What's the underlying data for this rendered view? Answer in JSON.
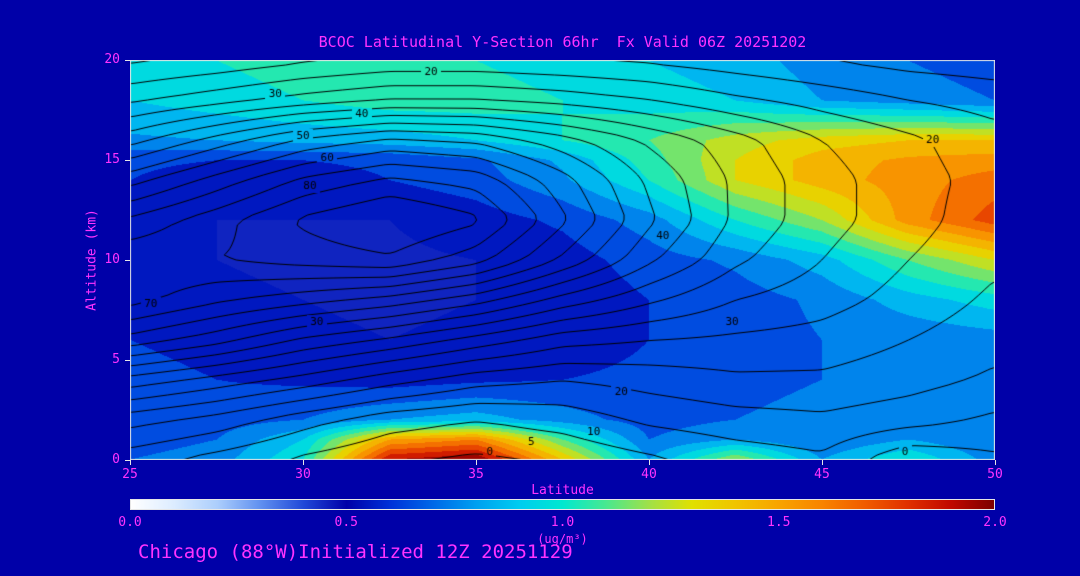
{
  "title": "BCOC Latitudinal Y-Section 66hr  Fx Valid 06Z 20251202",
  "footer": "Chicago (88°W)Initialized 12Z 20251129",
  "axes": {
    "x": {
      "label": "Latitude",
      "min": 25,
      "max": 50,
      "ticks": [
        25,
        30,
        35,
        40,
        45,
        50
      ]
    },
    "y": {
      "label": "Altitude (km)",
      "min": 0,
      "max": 20,
      "ticks": [
        0,
        5,
        10,
        15,
        20
      ]
    }
  },
  "colorbar": {
    "min": 0.0,
    "max": 2.0,
    "ticks": [
      "0.0",
      "0.5",
      "1.0",
      "1.5",
      "2.0"
    ],
    "units": "(ug/m³)",
    "stops": [
      [
        0.0,
        "#ffffff"
      ],
      [
        0.1,
        "#dcecff"
      ],
      [
        0.2,
        "#accefc"
      ],
      [
        0.3,
        "#6090f0"
      ],
      [
        0.4,
        "#2048d8"
      ],
      [
        0.5,
        "#0000a8"
      ],
      [
        0.6,
        "#0030d8"
      ],
      [
        0.7,
        "#0068e8"
      ],
      [
        0.8,
        "#00a0f0"
      ],
      [
        0.9,
        "#00ccf0"
      ],
      [
        1.0,
        "#00e8d0"
      ],
      [
        1.1,
        "#48e890"
      ],
      [
        1.2,
        "#a0e048"
      ],
      [
        1.3,
        "#e0e000"
      ],
      [
        1.4,
        "#f0c400"
      ],
      [
        1.5,
        "#f8a400"
      ],
      [
        1.6,
        "#f88400"
      ],
      [
        1.7,
        "#f05c00"
      ],
      [
        1.8,
        "#e03000"
      ],
      [
        1.9,
        "#c00800"
      ],
      [
        2.0,
        "#7c0000"
      ]
    ]
  },
  "colors": {
    "background": "#0000a8",
    "text": "#ff33ff",
    "contour_line": "#000000",
    "frame": "#e6e6e6"
  },
  "chart_data": {
    "type": "heatmap",
    "title": "BCOC Latitudinal Y-Section 66hr  Fx Valid 06Z 20251202",
    "xlabel": "Latitude",
    "ylabel": "Altitude (km)",
    "xlim": [
      25,
      50
    ],
    "ylim": [
      0,
      20
    ],
    "fill_units": "ug/m3",
    "fill": {
      "lats": [
        25,
        27.5,
        30,
        32.5,
        35,
        37.5,
        40,
        42.5,
        45,
        47.5,
        50
      ],
      "alts": [
        0,
        1,
        2,
        4,
        6,
        8,
        10,
        12,
        14,
        15,
        16,
        18,
        20
      ],
      "values": [
        [
          0.7,
          0.75,
          1.0,
          1.9,
          2.0,
          1.4,
          0.8,
          1.2,
          0.8,
          1.0,
          0.75
        ],
        [
          0.65,
          0.7,
          0.9,
          1.5,
          1.6,
          1.1,
          0.7,
          0.8,
          0.7,
          0.8,
          0.7
        ],
        [
          0.7,
          0.65,
          0.7,
          0.8,
          0.85,
          0.75,
          0.65,
          0.7,
          0.75,
          0.7,
          0.7
        ],
        [
          0.65,
          0.6,
          0.58,
          0.55,
          0.58,
          0.6,
          0.62,
          0.65,
          0.7,
          0.7,
          0.72
        ],
        [
          0.6,
          0.55,
          0.52,
          0.5,
          0.52,
          0.55,
          0.6,
          0.65,
          0.7,
          0.72,
          0.75
        ],
        [
          0.55,
          0.52,
          0.5,
          0.48,
          0.5,
          0.52,
          0.6,
          0.65,
          0.72,
          0.85,
          0.95
        ],
        [
          0.55,
          0.5,
          0.48,
          0.48,
          0.5,
          0.55,
          0.65,
          0.72,
          0.85,
          1.1,
          1.3
        ],
        [
          0.55,
          0.5,
          0.5,
          0.5,
          0.55,
          0.62,
          0.75,
          1.0,
          1.2,
          1.55,
          1.75
        ],
        [
          0.6,
          0.55,
          0.55,
          0.6,
          0.65,
          0.78,
          1.0,
          1.3,
          1.45,
          1.55,
          1.65
        ],
        [
          0.62,
          0.6,
          0.6,
          0.62,
          0.68,
          0.82,
          1.05,
          1.3,
          1.45,
          1.52,
          1.55
        ],
        [
          0.78,
          0.8,
          0.83,
          0.85,
          0.9,
          1.0,
          1.1,
          1.25,
          1.35,
          1.4,
          1.4
        ],
        [
          0.9,
          0.95,
          1.0,
          1.05,
          1.05,
          1.0,
          0.95,
          0.9,
          0.8,
          0.75,
          0.7
        ],
        [
          0.95,
          1.0,
          1.05,
          1.05,
          1.0,
          0.95,
          0.9,
          0.85,
          0.75,
          0.7,
          0.65
        ]
      ]
    },
    "contours": {
      "levels": [
        0.8,
        5,
        10,
        15,
        20,
        25,
        30,
        35,
        40,
        45,
        50,
        55,
        60,
        65,
        70,
        75,
        80
      ],
      "lats": [
        25,
        27.5,
        30,
        32.5,
        35,
        37.5,
        40,
        42.5,
        45,
        47.5,
        50
      ],
      "alts": [
        0,
        2,
        4,
        6,
        8,
        10,
        12,
        14,
        16,
        18,
        20
      ],
      "values": [
        [
          12,
          8,
          4,
          1,
          0,
          1,
          4,
          7,
          9,
          1,
          4
        ],
        [
          22,
          18,
          12,
          7,
          5,
          7,
          11,
          13,
          14,
          12,
          9
        ],
        [
          38,
          33,
          28,
          22,
          17,
          15,
          17,
          19,
          19,
          17,
          14
        ],
        [
          58,
          52,
          44,
          39,
          33,
          27,
          25,
          24,
          23,
          20,
          17
        ],
        [
          72,
          66,
          62,
          58,
          52,
          43,
          36,
          30,
          27,
          23,
          19
        ],
        [
          74,
          75,
          77,
          79,
          72,
          59,
          46,
          36,
          30,
          25,
          21
        ],
        [
          66,
          73,
          81,
          86,
          81,
          66,
          51,
          39,
          32,
          27,
          22
        ],
        [
          53,
          62,
          71,
          76,
          73,
          62,
          49,
          39,
          32,
          27,
          23
        ],
        [
          38,
          47,
          56,
          61,
          59,
          52,
          44,
          37,
          30,
          26,
          22
        ],
        [
          24,
          28,
          32,
          35,
          35,
          33,
          30,
          26,
          23,
          20,
          18
        ],
        [
          14,
          16,
          19,
          21,
          21,
          20,
          19,
          17,
          15,
          13,
          12
        ]
      ],
      "labels": [
        {
          "value": 20,
          "lat": 33.7,
          "alt": 19.4
        },
        {
          "value": 30,
          "lat": 29.2,
          "alt": 18.3
        },
        {
          "value": 40,
          "lat": 31.7,
          "alt": 17.3
        },
        {
          "value": 50,
          "lat": 30.0,
          "alt": 16.2
        },
        {
          "value": 60,
          "lat": 30.7,
          "alt": 15.1
        },
        {
          "value": 80,
          "lat": 30.2,
          "alt": 13.7
        },
        {
          "value": 70,
          "lat": 25.6,
          "alt": 7.8
        },
        {
          "value": 30,
          "lat": 30.4,
          "alt": 6.9
        },
        {
          "value": 40,
          "lat": 40.4,
          "alt": 11.2
        },
        {
          "value": 30,
          "lat": 42.4,
          "alt": 6.9
        },
        {
          "value": 20,
          "lat": 48.2,
          "alt": 16.0
        },
        {
          "value": 20,
          "lat": 39.2,
          "alt": 3.4
        },
        {
          "value": 10,
          "lat": 38.4,
          "alt": 1.4
        },
        {
          "value": 5,
          "lat": 36.6,
          "alt": 0.9
        },
        {
          "value": 0,
          "lat": 35.4,
          "alt": 0.4
        },
        {
          "value": 0,
          "lat": 47.4,
          "alt": 0.4
        }
      ]
    }
  }
}
